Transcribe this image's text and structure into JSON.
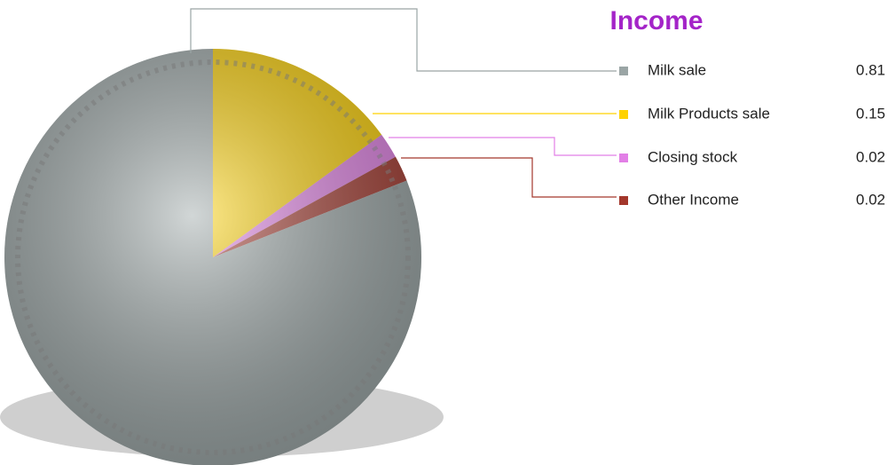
{
  "chart_data": {
    "type": "pie",
    "title": "Income",
    "categories": [
      "Milk sale",
      "Milk Products sale",
      "Closing stock",
      "Other Income"
    ],
    "values": [
      0.81,
      0.15,
      0.02,
      0.02
    ],
    "colors": [
      "#9aa5a5",
      "#ffd200",
      "#e27fe6",
      "#a3372c"
    ],
    "title_color": "#a424c8"
  }
}
